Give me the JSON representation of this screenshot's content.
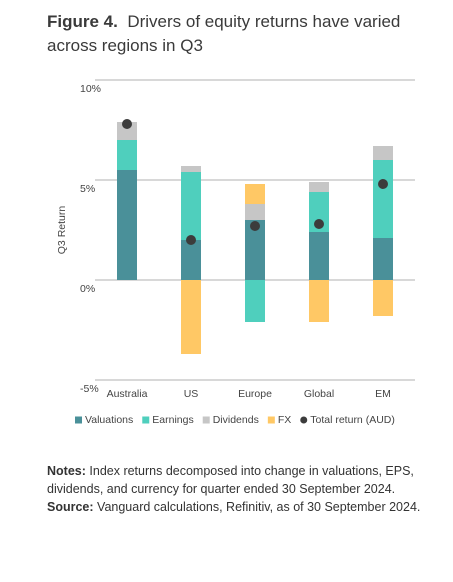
{
  "chart_data": {
    "type": "bar",
    "title_label": "Figure 4.",
    "title": "Drivers of equity returns have varied across regions in Q3",
    "y_label": "Q3 Return",
    "categories": [
      "Australia",
      "US",
      "Europe",
      "Global",
      "EM"
    ],
    "series": [
      {
        "name": "Valuations",
        "color": "#4a9099",
        "values": [
          5.5,
          2.0,
          3.0,
          2.4,
          2.1
        ]
      },
      {
        "name": "Earnings",
        "color": "#4fcfbd",
        "values": [
          1.5,
          3.4,
          -2.1,
          2.0,
          3.9
        ]
      },
      {
        "name": "Dividends",
        "color": "#c6c6c6",
        "values": [
          0.9,
          0.3,
          0.8,
          0.5,
          0.7
        ]
      },
      {
        "name": "FX",
        "color": "#ffc865",
        "values": [
          0,
          -3.7,
          1.0,
          -2.1,
          -1.8
        ]
      }
    ],
    "total": {
      "name": "Total return (AUD)",
      "color": "#3c3c3c",
      "values": [
        7.8,
        2.0,
        2.7,
        2.8,
        4.8
      ]
    },
    "ylim": [
      -5,
      10
    ],
    "yticks": [
      {
        "value": -5,
        "label": "-5%"
      },
      {
        "value": 0,
        "label": "0%"
      },
      {
        "value": 5,
        "label": "5%"
      },
      {
        "value": 10,
        "label": "10%"
      }
    ],
    "grid": true,
    "notes_label": "Notes:",
    "notes": "Index returns decomposed into change in valuations, EPS, dividends, and currency for quarter ended 30 September 2024.",
    "source_label": "Source:",
    "source": "Vanguard calculations, Refinitiv, as of 30 September 2024."
  }
}
